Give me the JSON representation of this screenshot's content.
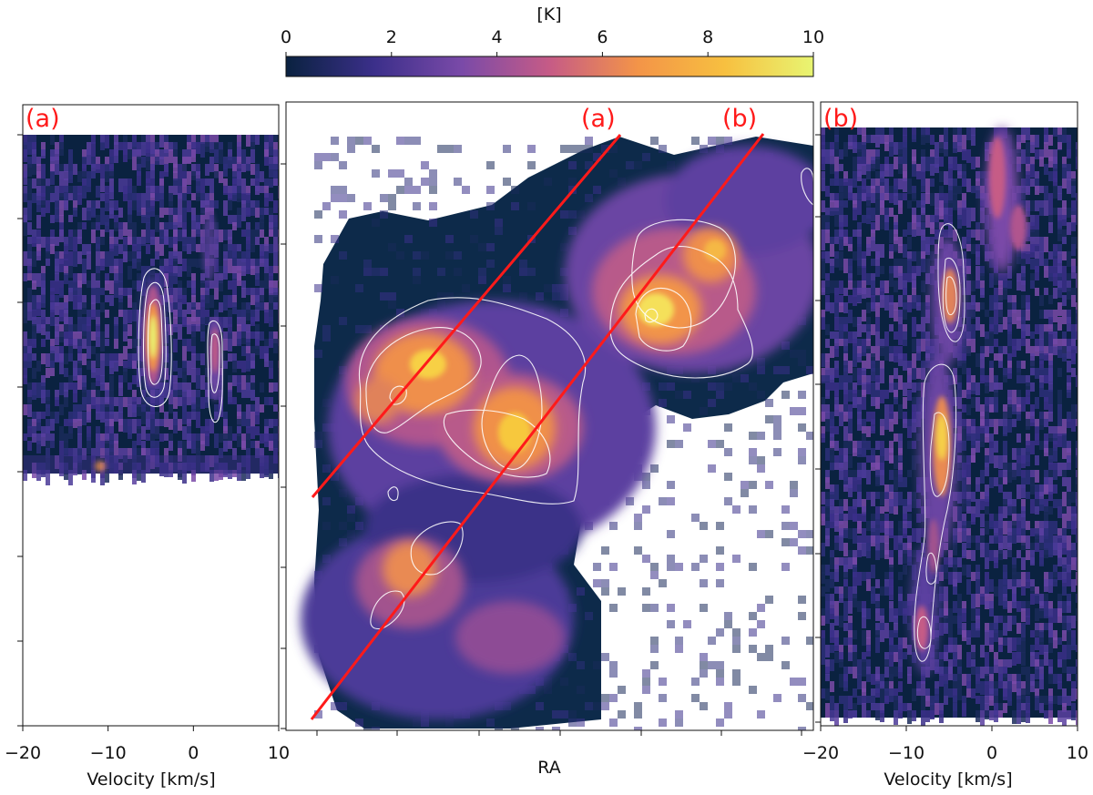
{
  "colorbar": {
    "unit_label": "[K]",
    "ticks": [
      "0",
      "2",
      "4",
      "6",
      "8",
      "10"
    ],
    "range": [
      0,
      10
    ],
    "colormap_stops": [
      "#0a2240",
      "#3b2f8a",
      "#7a4aa8",
      "#c65b86",
      "#f39448",
      "#f7c040",
      "#e8f572"
    ]
  },
  "panels": {
    "left": {
      "tag": "(a)",
      "xlabel": "Velocity [km/s]",
      "xticks": [
        "−20",
        "−10",
        "0",
        "10"
      ],
      "xlim": [
        -20,
        10
      ]
    },
    "center": {
      "xlabel": "RA",
      "cut_labels": [
        "(a)",
        "(b)"
      ]
    },
    "right": {
      "tag": "(b)",
      "xlabel": "Velocity [km/s]",
      "xticks": [
        "−20",
        "−10",
        "0",
        "10"
      ],
      "xlim": [
        -20,
        10
      ]
    }
  },
  "chart_data": [
    {
      "type": "heatmap",
      "title": "",
      "xlabel": "Velocity [km/s]",
      "ylabel": "",
      "xlim": [
        -20,
        10
      ],
      "color_range_K": [
        0,
        10
      ],
      "cut": "(a)",
      "emission_features": [
        {
          "velocity_kms": -5,
          "peak_K": 9.5
        },
        {
          "velocity_kms": 2.5,
          "peak_K": 5
        }
      ]
    },
    {
      "type": "heatmap",
      "title": "",
      "xlabel": "RA",
      "ylabel": "",
      "color_range_K": [
        0,
        10
      ],
      "cuts": [
        "(a)",
        "(b)"
      ],
      "bright_regions_K": [
        9.5,
        9.5,
        9.0,
        9.5,
        9.0
      ]
    },
    {
      "type": "heatmap",
      "title": "",
      "xlabel": "Velocity [km/s]",
      "ylabel": "",
      "xlim": [
        -20,
        10
      ],
      "color_range_K": [
        0,
        10
      ],
      "cut": "(b)",
      "emission_features": [
        {
          "velocity_kms": -5,
          "peak_K": 8.5
        },
        {
          "velocity_kms": -6,
          "peak_K": 9.5
        },
        {
          "velocity_kms": -8,
          "peak_K": 7.5
        },
        {
          "velocity_kms": 1,
          "peak_K": 7
        }
      ]
    }
  ]
}
